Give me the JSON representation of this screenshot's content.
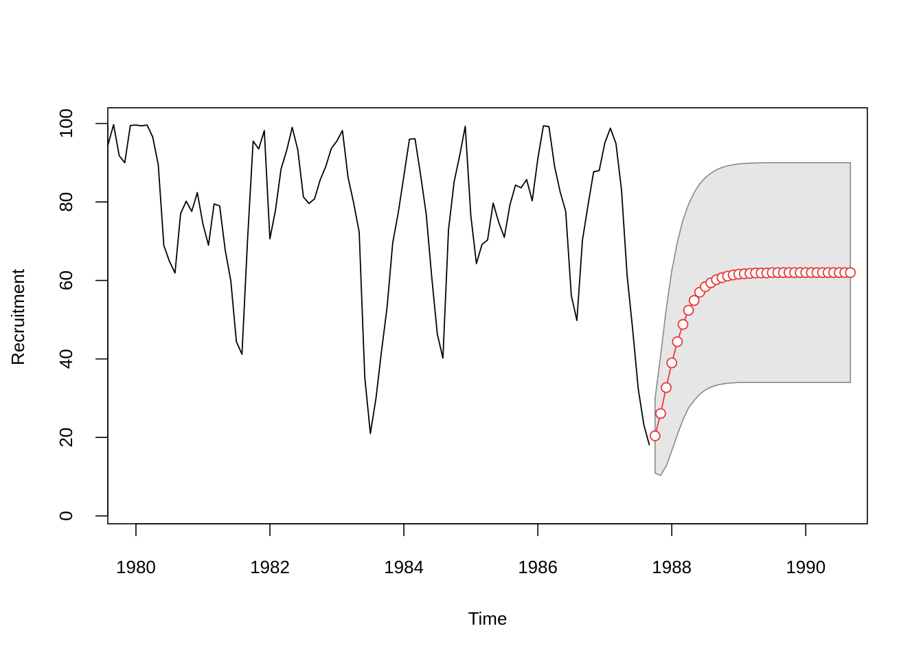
{
  "chart_data": {
    "type": "line",
    "xlabel": "Time",
    "ylabel": "Recruitment",
    "xlim": [
      1979.58,
      1990.92
    ],
    "ylim": [
      -2,
      104
    ],
    "x_ticks": [
      1980,
      1982,
      1984,
      1986,
      1988,
      1990
    ],
    "x_tick_labels": [
      "1980",
      "1982",
      "1984",
      "1986",
      "1988",
      "1990"
    ],
    "y_ticks": [
      0,
      20,
      40,
      60,
      80,
      100
    ],
    "y_tick_labels": [
      "0",
      "20",
      "40",
      "60",
      "80",
      "100"
    ],
    "grid": false,
    "observed": {
      "start": 1979.583,
      "frequency": 12,
      "color": "#000000",
      "values": [
        94.6,
        99.7,
        91.8,
        90.0,
        99.5,
        99.6,
        99.4,
        99.6,
        96.6,
        89.5,
        68.9,
        64.9,
        61.9,
        77.0,
        80.2,
        77.6,
        82.4,
        74.4,
        69.0,
        79.5,
        79.0,
        67.7,
        59.9,
        44.4,
        41.2,
        70.4,
        95.5,
        93.5,
        98.2,
        70.6,
        77.9,
        88.4,
        93.1,
        99.0,
        93.3,
        81.3,
        79.6,
        80.8,
        85.6,
        89.0,
        93.6,
        95.5,
        98.2,
        86.3,
        79.8,
        72.3,
        35.3,
        21.0,
        29.9,
        42.0,
        53.2,
        69.5,
        77.3,
        86.6,
        96.0,
        96.1,
        86.9,
        77.0,
        60.8,
        46.3,
        40.2,
        72.9,
        85.1,
        91.8,
        99.3,
        76.5,
        64.3,
        69.2,
        70.3,
        79.7,
        74.8,
        71.0,
        79.2,
        84.3,
        83.6,
        85.7,
        80.3,
        91.0,
        99.4,
        99.2,
        89.1,
        82.6,
        77.6,
        56.2,
        49.8,
        70.3,
        79.2,
        87.7,
        88.0,
        95.0,
        98.8,
        94.9,
        83.0,
        61.3,
        47.4,
        32.3,
        23.2,
        18.0
      ]
    },
    "forecast": {
      "start": 1987.75,
      "frequency": 12,
      "color": "#E8373A",
      "marker": "open-circle",
      "values": [
        20.4,
        26.1,
        32.7,
        39.0,
        44.4,
        48.8,
        52.4,
        54.9,
        57.0,
        58.4,
        59.4,
        60.2,
        60.7,
        61.1,
        61.4,
        61.6,
        61.7,
        61.8,
        61.9,
        61.9,
        61.9,
        62.0,
        62.0,
        62.0,
        62.0,
        62.0,
        62.0,
        62.0,
        62.0,
        62.0,
        62.0,
        62.0,
        62.0,
        62.0,
        62.0,
        62.0
      ]
    },
    "interval": {
      "band_color": "#E6E6E6",
      "edge_color": "#888888",
      "upper": [
        29.9,
        40.9,
        52.7,
        62.5,
        69.8,
        75.4,
        79.4,
        82.4,
        84.6,
        86.2,
        87.3,
        88.2,
        88.8,
        89.2,
        89.5,
        89.7,
        89.8,
        89.9,
        89.9,
        90.0,
        90.0,
        90.0,
        90.0,
        90.0,
        90.0,
        90.0,
        90.0,
        90.0,
        90.0,
        90.0,
        90.0,
        90.0,
        90.0,
        90.0,
        90.0,
        90.0
      ],
      "lower": [
        10.9,
        10.3,
        12.7,
        16.6,
        20.7,
        24.5,
        27.5,
        29.4,
        31.0,
        32.1,
        32.8,
        33.3,
        33.6,
        33.8,
        33.9,
        34.0,
        34.0,
        34.0,
        34.0,
        34.0,
        34.0,
        34.0,
        34.0,
        34.0,
        34.0,
        34.0,
        34.0,
        34.0,
        34.0,
        34.0,
        34.0,
        34.0,
        34.0,
        34.0,
        34.0,
        34.0
      ]
    }
  }
}
